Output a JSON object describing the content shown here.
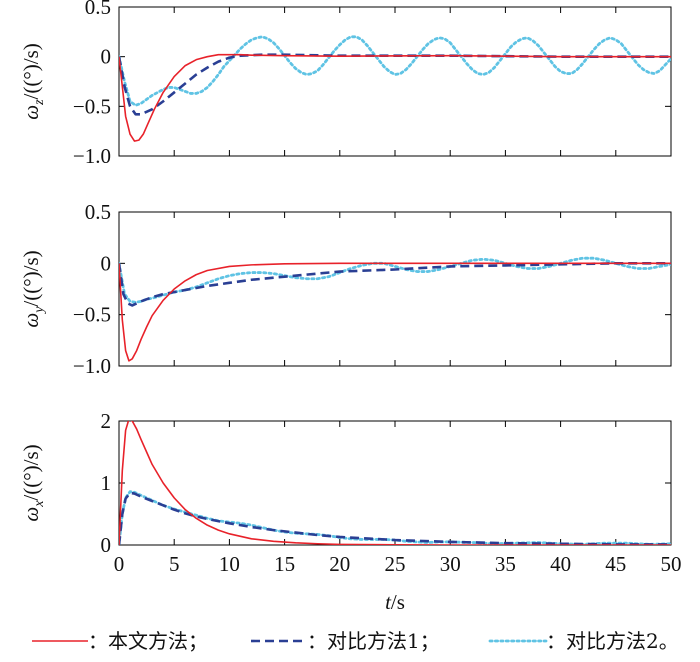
{
  "chart_data": [
    {
      "type": "line",
      "ylabel_sym": "ω",
      "ylabel_sub": "z",
      "ylabel_unit": "/((°)/s)",
      "xlim": [
        0,
        50
      ],
      "ylim": [
        -1.0,
        0.5
      ],
      "yticks": [
        -1.0,
        -0.5,
        0,
        0.5
      ],
      "ytick_labels": [
        "−1.0",
        "−0.5",
        "0",
        "0.5"
      ],
      "xticks": [
        0,
        5,
        10,
        15,
        20,
        25,
        30,
        35,
        40,
        45,
        50
      ],
      "xtick_labels": [],
      "series": [
        {
          "color": "#e8222a",
          "style": "solid",
          "x": [
            0,
            0.3,
            0.6,
            1.0,
            1.4,
            1.8,
            2.2,
            2.6,
            3.2,
            4,
            5,
            6,
            7,
            8,
            9,
            10,
            11,
            12,
            15,
            20,
            30,
            40,
            50
          ],
          "y": [
            0,
            -0.3,
            -0.6,
            -0.78,
            -0.85,
            -0.84,
            -0.78,
            -0.68,
            -0.53,
            -0.36,
            -0.2,
            -0.09,
            -0.03,
            0,
            0.02,
            0.02,
            0.02,
            0.015,
            0.01,
            0.005,
            0.01,
            0,
            0
          ]
        },
        {
          "color": "#2a3f94",
          "style": "dashed",
          "x": [
            0,
            0.5,
            1.0,
            1.5,
            2,
            3,
            4,
            5,
            6,
            7,
            8,
            9,
            10,
            11,
            13,
            15,
            20,
            30,
            40,
            50
          ],
          "y": [
            0,
            -0.3,
            -0.5,
            -0.58,
            -0.58,
            -0.53,
            -0.45,
            -0.36,
            -0.27,
            -0.18,
            -0.11,
            -0.05,
            -0.01,
            0.01,
            0.02,
            0.02,
            0.01,
            0.01,
            0,
            0
          ]
        },
        {
          "color": "#5fc3e4",
          "style": "dotted",
          "x": [
            0,
            0.5,
            1.0,
            1.5,
            2,
            2.5,
            3,
            3.5,
            4,
            4.5,
            5,
            5.5,
            6,
            6.5,
            7,
            7.5,
            8,
            8.5,
            9,
            9.5,
            10,
            10.5,
            11,
            11.5,
            12,
            12.5,
            13,
            13.5,
            14,
            14.5,
            15,
            15.5,
            16,
            16.5,
            17,
            17.5,
            18,
            18.5,
            19,
            19.5,
            20,
            20.5,
            21,
            21.5,
            22,
            22.5,
            23,
            23.5,
            24,
            24.5,
            25,
            25.5,
            26,
            26.5,
            27,
            27.5,
            28,
            28.5,
            29,
            29.5,
            30,
            30.5,
            31,
            31.5,
            32,
            32.5,
            33,
            33.5,
            34,
            34.5,
            35,
            35.5,
            36,
            36.5,
            37,
            37.5,
            38,
            38.5,
            39,
            39.5,
            40,
            40.5,
            41,
            41.5,
            42,
            42.5,
            43,
            43.5,
            44,
            44.5,
            45,
            45.5,
            46,
            46.5,
            47,
            47.5,
            48,
            48.5,
            49,
            49.5,
            50
          ],
          "y": [
            0,
            -0.25,
            -0.45,
            -0.49,
            -0.47,
            -0.43,
            -0.39,
            -0.36,
            -0.33,
            -0.31,
            -0.31,
            -0.33,
            -0.35,
            -0.37,
            -0.37,
            -0.35,
            -0.31,
            -0.25,
            -0.18,
            -0.1,
            -0.04,
            0.02,
            0.08,
            0.13,
            0.17,
            0.19,
            0.2,
            0.18,
            0.14,
            0.08,
            0.01,
            -0.06,
            -0.12,
            -0.16,
            -0.18,
            -0.17,
            -0.14,
            -0.08,
            -0.01,
            0.06,
            0.12,
            0.17,
            0.2,
            0.2,
            0.17,
            0.11,
            0.04,
            -0.03,
            -0.1,
            -0.15,
            -0.18,
            -0.17,
            -0.13,
            -0.07,
            0,
            0.07,
            0.13,
            0.17,
            0.19,
            0.18,
            0.14,
            0.07,
            0,
            -0.07,
            -0.13,
            -0.17,
            -0.18,
            -0.16,
            -0.11,
            -0.04,
            0.03,
            0.1,
            0.15,
            0.18,
            0.19,
            0.16,
            0.11,
            0.04,
            -0.03,
            -0.1,
            -0.15,
            -0.17,
            -0.17,
            -0.13,
            -0.07,
            0,
            0.07,
            0.13,
            0.17,
            0.19,
            0.17,
            0.13,
            0.06,
            -0.01,
            -0.08,
            -0.13,
            -0.16,
            -0.17,
            -0.14,
            -0.08,
            -0.02
          ]
        }
      ]
    },
    {
      "type": "line",
      "ylabel_sym": "ω",
      "ylabel_sub": "y",
      "ylabel_unit": "/((°)/s)",
      "xlim": [
        0,
        50
      ],
      "ylim": [
        -1.0,
        0.5
      ],
      "yticks": [
        -1.0,
        -0.5,
        0,
        0.5
      ],
      "ytick_labels": [
        "−1.0",
        "−0.5",
        "0",
        "0.5"
      ],
      "xticks": [
        0,
        5,
        10,
        15,
        20,
        25,
        30,
        35,
        40,
        45,
        50
      ],
      "xtick_labels": [],
      "series": [
        {
          "color": "#e8222a",
          "style": "solid",
          "x": [
            0,
            0.3,
            0.6,
            0.9,
            1.2,
            1.6,
            2,
            2.5,
            3,
            4,
            5,
            6,
            7,
            8,
            10,
            12,
            15,
            20,
            25,
            30,
            40,
            50
          ],
          "y": [
            0,
            -0.55,
            -0.85,
            -0.95,
            -0.93,
            -0.85,
            -0.74,
            -0.62,
            -0.51,
            -0.36,
            -0.25,
            -0.17,
            -0.11,
            -0.07,
            -0.03,
            -0.015,
            -0.005,
            0,
            0,
            0,
            0,
            0
          ]
        },
        {
          "color": "#2a3f94",
          "style": "dashed",
          "x": [
            0,
            0.4,
            0.8,
            1.2,
            1.6,
            2,
            3,
            4,
            5,
            6,
            7,
            8,
            10,
            12,
            15,
            18,
            20,
            25,
            30,
            35,
            40,
            45,
            50
          ],
          "y": [
            0,
            -0.3,
            -0.39,
            -0.41,
            -0.39,
            -0.37,
            -0.33,
            -0.3,
            -0.28,
            -0.26,
            -0.24,
            -0.22,
            -0.19,
            -0.16,
            -0.13,
            -0.1,
            -0.08,
            -0.06,
            -0.03,
            -0.02,
            -0.01,
            0,
            0
          ]
        },
        {
          "color": "#5fc3e4",
          "style": "dotted",
          "x": [
            0,
            0.5,
            1,
            1.5,
            2,
            2.5,
            3,
            4,
            5,
            6,
            7,
            8,
            9,
            10,
            11,
            12,
            13,
            14,
            15,
            16,
            17,
            18,
            19,
            20,
            21,
            22,
            23,
            24,
            25,
            26,
            27,
            28,
            29,
            30,
            31,
            32,
            33,
            34,
            35,
            36,
            37,
            38,
            39,
            40,
            41,
            42,
            43,
            44,
            45,
            46,
            47,
            48,
            49,
            50
          ],
          "y": [
            0,
            -0.3,
            -0.37,
            -0.38,
            -0.37,
            -0.35,
            -0.34,
            -0.31,
            -0.28,
            -0.26,
            -0.23,
            -0.19,
            -0.15,
            -0.12,
            -0.1,
            -0.09,
            -0.09,
            -0.1,
            -0.12,
            -0.14,
            -0.15,
            -0.15,
            -0.13,
            -0.09,
            -0.05,
            -0.02,
            0,
            0,
            -0.03,
            -0.06,
            -0.08,
            -0.08,
            -0.06,
            -0.03,
            0,
            0.03,
            0.04,
            0.03,
            0,
            -0.03,
            -0.05,
            -0.05,
            -0.03,
            0,
            0.03,
            0.05,
            0.05,
            0.03,
            0,
            -0.03,
            -0.05,
            -0.05,
            -0.03,
            -0.01
          ]
        }
      ]
    },
    {
      "type": "line",
      "ylabel_sym": "ω",
      "ylabel_sub": "x",
      "ylabel_unit": "/((°)/s)",
      "xlim": [
        0,
        50
      ],
      "ylim": [
        0,
        2
      ],
      "yticks": [
        0,
        1,
        2
      ],
      "ytick_labels": [
        "0",
        "1",
        "2"
      ],
      "xticks": [
        0,
        5,
        10,
        15,
        20,
        25,
        30,
        35,
        40,
        45,
        50
      ],
      "xtick_labels": [
        "0",
        "5",
        "10",
        "15",
        "20",
        "25",
        "30",
        "35",
        "40",
        "45",
        "50"
      ],
      "series": [
        {
          "color": "#e8222a",
          "style": "solid",
          "x": [
            0,
            0.3,
            0.6,
            0.9,
            1.2,
            1.6,
            2,
            2.5,
            3,
            4,
            5,
            6,
            7,
            8,
            9,
            10,
            12,
            14,
            16,
            18,
            20,
            25,
            30,
            40,
            50
          ],
          "y": [
            0,
            1.2,
            1.85,
            2.03,
            2.0,
            1.87,
            1.7,
            1.5,
            1.3,
            1.0,
            0.76,
            0.57,
            0.43,
            0.32,
            0.24,
            0.18,
            0.1,
            0.06,
            0.035,
            0.02,
            0.01,
            0.003,
            0,
            0,
            0
          ]
        },
        {
          "color": "#2a3f94",
          "style": "dashed",
          "x": [
            0,
            0.3,
            0.6,
            1.0,
            1.4,
            2,
            3,
            4,
            5,
            6,
            7,
            8,
            10,
            12,
            14,
            16,
            18,
            20,
            25,
            30,
            35,
            40,
            45,
            50
          ],
          "y": [
            0,
            0.5,
            0.75,
            0.84,
            0.83,
            0.78,
            0.71,
            0.64,
            0.57,
            0.51,
            0.46,
            0.42,
            0.35,
            0.29,
            0.24,
            0.2,
            0.16,
            0.13,
            0.08,
            0.05,
            0.03,
            0.02,
            0.01,
            0.01
          ]
        },
        {
          "color": "#5fc3e4",
          "style": "dotted",
          "x": [
            0,
            0.3,
            0.6,
            1.0,
            1.4,
            2,
            3,
            4,
            5,
            6,
            7,
            8,
            9,
            10,
            11,
            12,
            13,
            14,
            15,
            16,
            17,
            18,
            19,
            20,
            21,
            22,
            23,
            24,
            25,
            26,
            27,
            28,
            29,
            30,
            32,
            34,
            36,
            38,
            40,
            42,
            44,
            46,
            48,
            50
          ],
          "y": [
            0,
            0.5,
            0.76,
            0.86,
            0.85,
            0.8,
            0.72,
            0.64,
            0.58,
            0.53,
            0.48,
            0.43,
            0.39,
            0.37,
            0.35,
            0.32,
            0.28,
            0.24,
            0.21,
            0.19,
            0.18,
            0.17,
            0.15,
            0.12,
            0.1,
            0.09,
            0.09,
            0.09,
            0.08,
            0.06,
            0.05,
            0.04,
            0.05,
            0.05,
            0.04,
            0.02,
            0.03,
            0.04,
            0.02,
            0.01,
            0.03,
            0.03,
            0.01,
            0.02
          ]
        }
      ]
    }
  ],
  "xlabel_sym": "t",
  "xlabel_unit": "/s",
  "legend": [
    {
      "label": "：本文方法；",
      "color": "#e8222a",
      "style": "solid"
    },
    {
      "label": "：对比方法1；",
      "color": "#2a3f94",
      "style": "dashed"
    },
    {
      "label": "：对比方法2。",
      "color": "#5fc3e4",
      "style": "dotted"
    }
  ]
}
